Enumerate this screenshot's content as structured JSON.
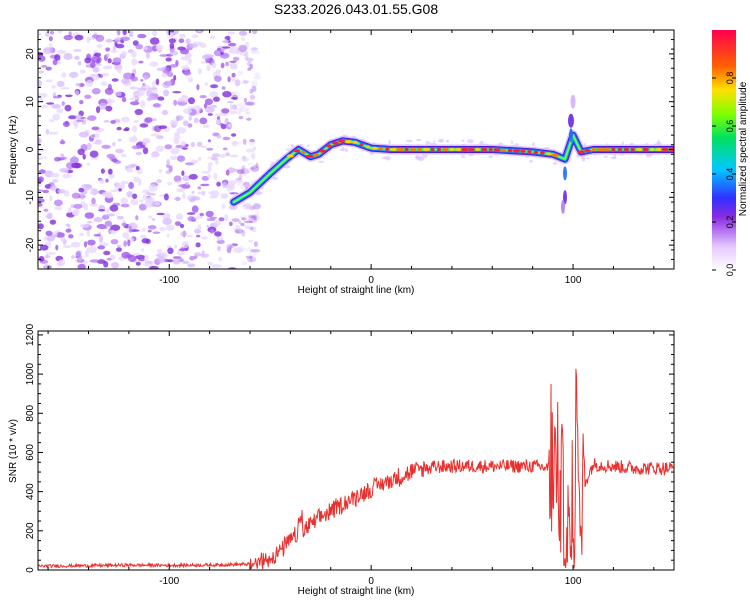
{
  "title": "S233.2026.043.01.55.G08",
  "chart_data": [
    {
      "type": "heatmap",
      "name": "spectrogram",
      "xlabel": "Height of straight line (km)",
      "ylabel": "Frequency (Hz)",
      "xlim": [
        -165,
        150
      ],
      "ylim": [
        -25,
        25
      ],
      "xticks": [
        -100,
        0,
        100
      ],
      "yticks": [
        -20,
        -10,
        0,
        10,
        20
      ],
      "grid": false,
      "noise_region_x": [
        -165,
        -60
      ],
      "ridge": {
        "x": [
          -68,
          -60,
          -50,
          -42,
          -36,
          -30,
          -26,
          -20,
          -14,
          -8,
          0,
          10,
          20,
          40,
          60,
          80,
          90,
          96,
          100,
          104,
          110,
          130,
          150
        ],
        "freq": [
          -11,
          -9,
          -5,
          -2,
          0,
          -1.5,
          -1,
          1,
          1.8,
          1.5,
          0.3,
          0,
          0,
          0,
          0,
          -0.5,
          -1,
          -2,
          3,
          -0.5,
          0,
          0,
          0
        ]
      },
      "colorbar": {
        "label": "Normalized spectral amplitude",
        "range": [
          0,
          1
        ],
        "ticks": [
          "0.0",
          "0.2",
          "0.4",
          "0.6",
          "0.8"
        ]
      }
    },
    {
      "type": "line",
      "name": "snr",
      "xlabel": "Height of straight line (km)",
      "ylabel": "SNR (10 * v/v)",
      "xlim": [
        -165,
        150
      ],
      "ylim": [
        0,
        1220
      ],
      "xticks": [
        -100,
        0,
        100
      ],
      "yticks": [
        0,
        200,
        400,
        600,
        800,
        1000,
        1200
      ],
      "grid": false,
      "color": "#e8312e",
      "series": [
        {
          "name": "SNR",
          "x": [
            -165,
            -140,
            -120,
            -100,
            -80,
            -60,
            -55,
            -50,
            -45,
            -40,
            -35,
            -30,
            -25,
            -20,
            -15,
            -10,
            -5,
            0,
            5,
            10,
            15,
            20,
            25,
            30,
            40,
            60,
            80,
            90,
            94,
            96,
            98,
            100,
            102,
            104,
            106,
            110,
            130,
            150
          ],
          "values": [
            20,
            22,
            25,
            24,
            25,
            30,
            40,
            60,
            100,
            150,
            190,
            230,
            270,
            300,
            330,
            360,
            390,
            410,
            440,
            460,
            480,
            500,
            515,
            525,
            530,
            530,
            530,
            520,
            420,
            250,
            80,
            40,
            900,
            300,
            450,
            540,
            520,
            520
          ]
        }
      ]
    }
  ]
}
